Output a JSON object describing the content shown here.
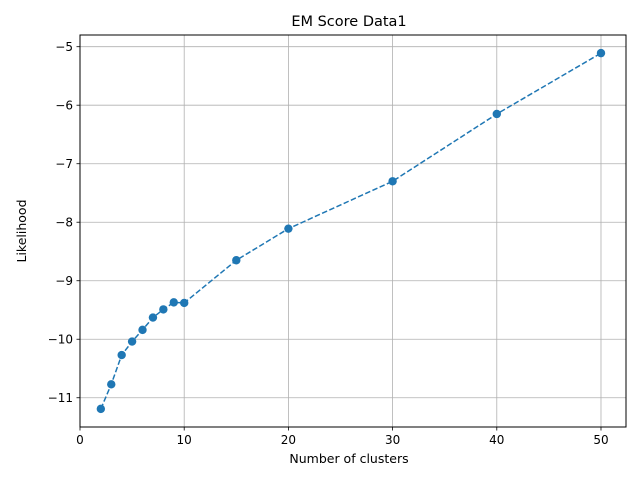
{
  "chart_data": {
    "type": "line",
    "title": "EM Score Data1",
    "xlabel": "Number of clusters",
    "ylabel": "Likelihood",
    "xlim": [
      0,
      52.4
    ],
    "ylim": [
      -11.5,
      -4.8
    ],
    "xticks": [
      0,
      10,
      20,
      30,
      40,
      50
    ],
    "yticks": [
      -11,
      -10,
      -9,
      -8,
      -7,
      -6,
      -5
    ],
    "xtick_labels": [
      "0",
      "10",
      "20",
      "30",
      "40",
      "50"
    ],
    "ytick_labels": [
      "−11",
      "−10",
      "−9",
      "−8",
      "−7",
      "−6",
      "−5"
    ],
    "grid": true,
    "legend": null,
    "series": [
      {
        "line_style": "dashed",
        "marker": "circle",
        "color": "#1f77b4",
        "x": [
          2,
          3,
          4,
          5,
          6,
          7,
          8,
          9,
          10,
          15,
          20,
          30,
          40,
          50
        ],
        "y": [
          -11.19,
          -10.77,
          -10.27,
          -10.04,
          -9.84,
          -9.63,
          -9.49,
          -9.37,
          -9.38,
          -8.65,
          -8.11,
          -7.3,
          -6.15,
          -5.11
        ]
      }
    ]
  }
}
